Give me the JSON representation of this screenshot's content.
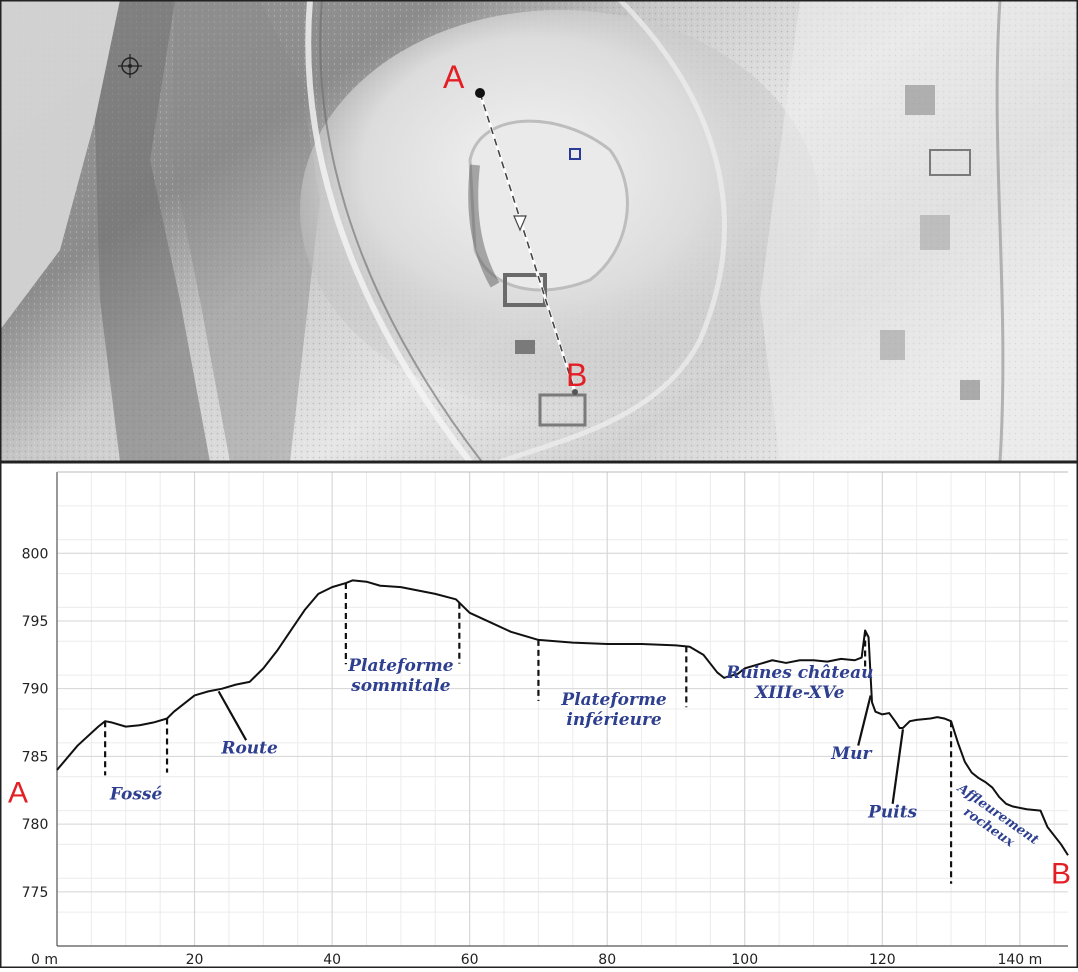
{
  "map": {
    "point_a": "A",
    "point_b": "B",
    "colors": {
      "hillshade_dark": "#6e6e6e",
      "hillshade_light": "#f2f2f2",
      "marker": "#2a3a9a",
      "endpoint": "#e31e24"
    },
    "icons": [
      "crosshair-icon",
      "square-marker-icon",
      "direction-arrow-icon"
    ]
  },
  "chart_data": {
    "type": "line",
    "title": "",
    "xlabel": "",
    "ylabel": "",
    "x_unit": "m",
    "xlim": [
      0,
      147
    ],
    "ylim": [
      771,
      806
    ],
    "grid": true,
    "x_ticks": [
      0,
      20,
      40,
      60,
      80,
      100,
      120,
      140
    ],
    "x_tick_labels": [
      "0 m",
      "20",
      "40",
      "60",
      "80",
      "100",
      "120",
      "140 m"
    ],
    "y_ticks": [
      775,
      780,
      785,
      790,
      795,
      800
    ],
    "y_tick_labels": [
      "775",
      "780",
      "785",
      "790",
      "795",
      "800"
    ],
    "endpoints": {
      "start": "A",
      "end": "B"
    },
    "series": [
      {
        "x": [
          0,
          3,
          6,
          7,
          8,
          10,
          12,
          14,
          16,
          17,
          20,
          22,
          24,
          26,
          28,
          30,
          32,
          34,
          36,
          38,
          40,
          42,
          43,
          45,
          47,
          50,
          55,
          58,
          60,
          63,
          66,
          70,
          75,
          80,
          85,
          90,
          92,
          94,
          96,
          97,
          99,
          100,
          102,
          104,
          106,
          108,
          110,
          112,
          114,
          116,
          117,
          117.5,
          118,
          118.5,
          119,
          120,
          121,
          122,
          122.5,
          123,
          124,
          125,
          127,
          128,
          129,
          130,
          131,
          132,
          133,
          134,
          135,
          136,
          137,
          138,
          139,
          141,
          143,
          144,
          146,
          147
        ],
        "y": [
          784,
          785.8,
          787.2,
          787.6,
          787.5,
          787.2,
          787.3,
          787.5,
          787.8,
          788.3,
          789.5,
          789.8,
          790,
          790.3,
          790.5,
          791.5,
          792.8,
          794.3,
          795.8,
          797,
          797.5,
          797.8,
          798,
          797.9,
          797.6,
          797.5,
          797,
          796.6,
          795.6,
          794.9,
          794.2,
          793.6,
          793.4,
          793.3,
          793.3,
          793.2,
          793.1,
          792.5,
          791.2,
          790.8,
          791.1,
          791.5,
          791.8,
          792.1,
          791.9,
          792.1,
          792.1,
          792,
          792.2,
          792.1,
          792.3,
          794.3,
          793.8,
          789,
          788.3,
          788.1,
          788.2,
          787.5,
          787.1,
          787.1,
          787.6,
          787.7,
          787.8,
          787.9,
          787.8,
          787.6,
          786,
          784.6,
          783.8,
          783.4,
          783.1,
          782.7,
          782,
          781.5,
          781.3,
          781.1,
          781,
          779.8,
          778.5,
          777.7
        ]
      }
    ],
    "annotations": [
      {
        "text": [
          "Fossé"
        ],
        "x": 11.5,
        "y": 781.8,
        "markers_x": [
          7,
          16
        ]
      },
      {
        "text": [
          "Route"
        ],
        "x": 28,
        "y": 785.2,
        "leader_from": [
          23.5,
          789.8
        ],
        "leader_to": [
          27.5,
          786.2
        ]
      },
      {
        "text": [
          "Plateforme",
          "sommitale"
        ],
        "x": 50,
        "y": 791.3,
        "markers_x": [
          42,
          58.5
        ]
      },
      {
        "text": [
          "Plateforme",
          "inférieure"
        ],
        "x": 81,
        "y": 788.8,
        "markers_x": [
          70,
          91.5
        ]
      },
      {
        "text": [
          "Ruines château",
          "XIIIe-XVe"
        ],
        "x": 108,
        "y": 790.8,
        "markers_x": [
          117.5
        ]
      },
      {
        "text": [
          "Mur"
        ],
        "x": 115.5,
        "y": 784.8,
        "leader_from": [
          118.3,
          789.5
        ],
        "leader_to": [
          116.5,
          785.8
        ]
      },
      {
        "text": [
          "Puits"
        ],
        "x": 121.5,
        "y": 780.5,
        "leader_from": [
          123,
          787
        ],
        "leader_to": [
          121.5,
          781.5
        ]
      },
      {
        "text": [
          "Affleurement",
          "rocheux"
        ],
        "x": 136.5,
        "y": 780.5,
        "rotate": 35,
        "markers_x": [
          130
        ]
      }
    ]
  }
}
